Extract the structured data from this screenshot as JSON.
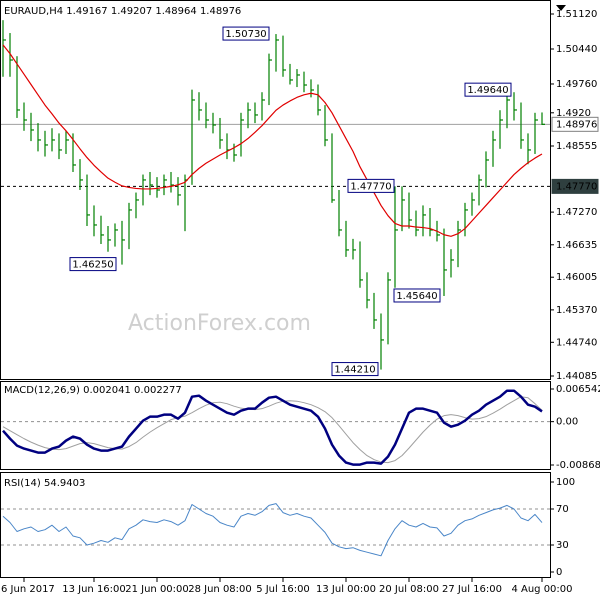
{
  "chart_data": [
    {
      "type": "ohlc",
      "title": "EURAUD,H4",
      "last_bar": {
        "open": 1.49167,
        "high": 1.49207,
        "low": 1.48964,
        "close": 1.48976
      },
      "color": "#008000",
      "x": [
        null,
        null,
        null,
        "6 Jun 2017",
        null,
        null,
        null,
        null,
        null,
        null,
        null,
        null,
        null,
        "13 Jun 16:00",
        null,
        null,
        null,
        null,
        null,
        null,
        null,
        null,
        "21 Jun 00:00",
        null,
        null,
        null,
        null,
        null,
        null,
        null,
        null,
        "28 Jun 08:00",
        null,
        null,
        null,
        null,
        null,
        null,
        null,
        null,
        "5 Jul 16:00",
        null,
        null,
        null,
        null,
        null,
        null,
        null,
        null,
        "13 Jul 00:00",
        null,
        null,
        null,
        null,
        null,
        null,
        null,
        null,
        "20 Jul 08:00",
        null,
        null,
        null,
        null,
        null,
        null,
        null,
        null,
        "27 Jul 16:00",
        null,
        null,
        null,
        null,
        null,
        null,
        null,
        null,
        null,
        "4 Aug 00:00"
      ],
      "high": [
        1.51,
        1.5075,
        1.503,
        1.494,
        1.492,
        1.49,
        1.4885,
        1.489,
        1.488,
        1.4885,
        1.488,
        1.483,
        1.48,
        1.474,
        1.472,
        1.47,
        1.4705,
        1.471,
        1.4745,
        1.4765,
        1.48,
        1.4805,
        1.4795,
        1.48,
        1.4805,
        1.4795,
        1.48,
        1.4965,
        1.496,
        1.494,
        1.492,
        1.491,
        1.488,
        1.486,
        1.492,
        1.494,
        1.494,
        1.496,
        1.5035,
        1.5073,
        1.507,
        1.5015,
        1.5005,
        1.5,
        1.4985,
        1.4975,
        1.4935,
        1.488,
        1.477,
        1.471,
        1.4675,
        1.467,
        1.461,
        1.457,
        1.453,
        1.461,
        1.4777,
        1.4777,
        1.4765,
        1.473,
        1.474,
        1.4735,
        1.471,
        1.4695,
        1.4655,
        1.471,
        1.4745,
        1.4765,
        1.48,
        1.4845,
        1.4885,
        1.4925,
        1.4964,
        1.496,
        1.494,
        1.488,
        1.492,
        1.49207
      ],
      "low": [
        1.499,
        1.499,
        1.491,
        1.4885,
        1.4865,
        1.4845,
        1.4835,
        1.4845,
        1.483,
        1.484,
        1.4805,
        1.477,
        1.47,
        1.468,
        1.4665,
        1.465,
        1.466,
        1.4625,
        1.4655,
        1.4715,
        1.474,
        1.476,
        1.4755,
        1.476,
        1.4765,
        1.474,
        1.469,
        1.478,
        1.4905,
        1.489,
        1.488,
        1.485,
        1.483,
        1.4825,
        1.4835,
        1.489,
        1.49,
        1.4905,
        1.4935,
        1.5,
        1.499,
        1.4975,
        1.497,
        1.496,
        1.495,
        1.4915,
        1.4855,
        1.4745,
        1.468,
        1.464,
        1.4635,
        1.458,
        1.454,
        1.45,
        1.4421,
        1.447,
        1.458,
        1.469,
        1.4695,
        1.468,
        1.468,
        1.468,
        1.467,
        1.4564,
        1.46,
        1.462,
        1.468,
        1.472,
        1.474,
        1.4775,
        1.4815,
        1.485,
        1.489,
        1.4905,
        1.485,
        1.482,
        1.484,
        1.48964
      ],
      "close": [
        1.50615,
        1.50226,
        1.49255,
        1.4906,
        1.48866,
        1.48672,
        1.48575,
        1.48672,
        1.48478,
        1.48672,
        1.48186,
        1.47895,
        1.47215,
        1.4702,
        1.46826,
        1.46729,
        1.46923,
        1.46729,
        1.47312,
        1.47506,
        1.47895,
        1.47797,
        1.477,
        1.47895,
        1.47797,
        1.47603,
        1.47895,
        1.49449,
        1.49255,
        1.4906,
        1.48963,
        1.48672,
        1.48478,
        1.4838,
        1.4906,
        1.49255,
        1.49158,
        1.49449,
        1.50226,
        1.50615,
        1.50032,
        1.49838,
        1.49935,
        1.4974,
        1.49643,
        1.49255,
        1.48672,
        1.47506,
        1.46923,
        1.46535,
        1.46535,
        1.45952,
        1.45563,
        1.45174,
        1.44786,
        1.45952,
        1.46923,
        1.47506,
        1.47117,
        1.46923,
        1.47215,
        1.46923,
        1.46826,
        1.46146,
        1.4634,
        1.46923,
        1.47312,
        1.47506,
        1.47895,
        1.48283,
        1.48672,
        1.4906,
        1.49449,
        1.49255,
        1.48672,
        1.48478,
        1.4906,
        1.48976
      ],
      "overlay": {
        "color": "#e00000",
        "values": [
          1.5052,
          1.5035,
          1.5015,
          1.4995,
          1.4975,
          1.4955,
          1.4935,
          1.4918,
          1.49,
          1.4885,
          1.4868,
          1.485,
          1.4833,
          1.4818,
          1.4805,
          1.4793,
          1.4785,
          1.4778,
          1.4775,
          1.4773,
          1.4772,
          1.4772,
          1.4773,
          1.4775,
          1.4777,
          1.478,
          1.4785,
          1.48,
          1.4812,
          1.4822,
          1.483,
          1.4838,
          1.4845,
          1.4852,
          1.486,
          1.487,
          1.4882,
          1.4895,
          1.491,
          1.4925,
          1.4935,
          1.4943,
          1.495,
          1.4955,
          1.4958,
          1.4955,
          1.494,
          1.492,
          1.4895,
          1.487,
          1.4845,
          1.4815,
          1.479,
          1.4765,
          1.474,
          1.472,
          1.4705,
          1.47,
          1.47,
          1.4698,
          1.4697,
          1.4695,
          1.469,
          1.4683,
          1.468,
          1.4685,
          1.4695,
          1.471,
          1.4725,
          1.474,
          1.4755,
          1.477,
          1.4785,
          1.48,
          1.4812,
          1.4823,
          1.4832,
          1.484
        ]
      },
      "ylim": [
        1.44085,
        1.5112
      ],
      "yticks": [
        {
          "value": 1.5112,
          "label": "1.51120"
        },
        {
          "value": 1.5044,
          "label": "1.50440"
        },
        {
          "value": 1.4976,
          "label": "1.49760"
        },
        {
          "value": 1.492,
          "label": "1.4920"
        },
        1.48555,
        {
          "value": 1.4727,
          "label": "1.47270"
        },
        1.46635,
        1.46005,
        {
          "value": 1.4537,
          "label": "1.45370"
        },
        {
          "value": 1.4474,
          "label": "1.44740"
        },
        1.44085
      ],
      "annotations": [
        {
          "value": 1.5073,
          "label": "1.50730"
        },
        {
          "value": 1.4625,
          "label": "1.46250"
        },
        {
          "value": 1.4777,
          "label": "1.47770"
        },
        {
          "value": 1.4564,
          "label": "1.45640"
        },
        {
          "value": 1.4421,
          "label": "1.44210"
        },
        {
          "value": 1.4964,
          "label": "1.49640"
        }
      ],
      "current_price": {
        "value": 1.48976,
        "label": "1.48976"
      },
      "level": {
        "value": 1.4777,
        "label": "1.47770"
      },
      "watermark": "ActionForex.com"
    },
    {
      "type": "line",
      "title": "MACD(12,26,9)",
      "title_values": [
        0.002041,
        0.002277
      ],
      "ylim": [
        -0.008684,
        0.006542
      ],
      "yticks": [
        -0.008684,
        {
          "value": 0,
          "label": "0.00"
        },
        0.006542
      ],
      "levels": [
        0
      ],
      "series": [
        {
          "color": "#000080",
          "values": [
            -0.0018,
            -0.0034,
            -0.0048,
            -0.0054,
            -0.0058,
            -0.0062,
            -0.0062,
            -0.0054,
            -0.005,
            -0.0038,
            -0.003,
            -0.0034,
            -0.0046,
            -0.0054,
            -0.0058,
            -0.0058,
            -0.0054,
            -0.005,
            -0.003,
            -0.0014,
            0.0002,
            0.001,
            0.001,
            0.0014,
            0.0014,
            0.0006,
            0.0018,
            0.005,
            0.0052,
            0.0042,
            0.0034,
            0.0026,
            0.0018,
            0.0014,
            0.0022,
            0.0026,
            0.0026,
            0.0038,
            0.0048,
            0.005,
            0.0042,
            0.0034,
            0.003,
            0.0026,
            0.0022,
            0.001,
            -0.0014,
            -0.0046,
            -0.0068,
            -0.0082,
            -0.0086,
            -0.0086,
            -0.0082,
            -0.0082,
            -0.0084,
            -0.007,
            -0.0046,
            -0.0014,
            0.0018,
            0.0026,
            0.0026,
            0.0022,
            0.0018,
            -0.0002,
            -0.001,
            -0.0006,
            0.0002,
            0.0014,
            0.0022,
            0.0034,
            0.0042,
            0.005,
            0.0062,
            0.0062,
            0.005,
            0.0034,
            0.003,
            0.002041
          ]
        },
        {
          "color": "#a0a0a0",
          "values": [
            -0.001,
            -0.0018,
            -0.0026,
            -0.0034,
            -0.0041,
            -0.0047,
            -0.0052,
            -0.0055,
            -0.0056,
            -0.0054,
            -0.0049,
            -0.0044,
            -0.0042,
            -0.0044,
            -0.0048,
            -0.0052,
            -0.0054,
            -0.0055,
            -0.005,
            -0.0042,
            -0.0031,
            -0.0021,
            -0.0012,
            -0.0004,
            0.0004,
            0.0008,
            0.0011,
            0.0018,
            0.0026,
            0.0033,
            0.0038,
            0.0039,
            0.0036,
            0.0031,
            0.0027,
            0.0025,
            0.0024,
            0.0026,
            0.0031,
            0.0037,
            0.0041,
            0.0042,
            0.0041,
            0.0038,
            0.0034,
            0.0028,
            0.002,
            0.0008,
            -0.0008,
            -0.0025,
            -0.0042,
            -0.0056,
            -0.0068,
            -0.0076,
            -0.0081,
            -0.0082,
            -0.0078,
            -0.0068,
            -0.0053,
            -0.0037,
            -0.0021,
            -0.0007,
            0.0005,
            0.0012,
            0.0014,
            0.0012,
            0.0008,
            0.0005,
            0.0006,
            0.001,
            0.0017,
            0.0025,
            0.0034,
            0.0042,
            0.005,
            0.0048,
            0.0036,
            0.002277
          ]
        }
      ]
    },
    {
      "type": "line",
      "title": "RSI(14)",
      "title_values": [
        54.9403
      ],
      "ylim": [
        0,
        100
      ],
      "yticks": [
        0,
        30,
        70,
        100
      ],
      "levels": [
        30,
        70
      ],
      "series": [
        {
          "color": "#4a86c8",
          "values": [
            62,
            55,
            45,
            48,
            50,
            45,
            47,
            52,
            45,
            50,
            40,
            38,
            30,
            32,
            35,
            33,
            38,
            36,
            48,
            52,
            58,
            56,
            55,
            58,
            56,
            52,
            57,
            75,
            70,
            65,
            62,
            55,
            52,
            50,
            62,
            65,
            63,
            67,
            74,
            76,
            66,
            63,
            65,
            62,
            60,
            52,
            44,
            32,
            28,
            26,
            27,
            24,
            22,
            20,
            18,
            35,
            48,
            57,
            52,
            50,
            54,
            50,
            49,
            40,
            43,
            52,
            57,
            59,
            63,
            66,
            69,
            71,
            74,
            70,
            60,
            57,
            64,
            54.94
          ]
        }
      ]
    }
  ]
}
